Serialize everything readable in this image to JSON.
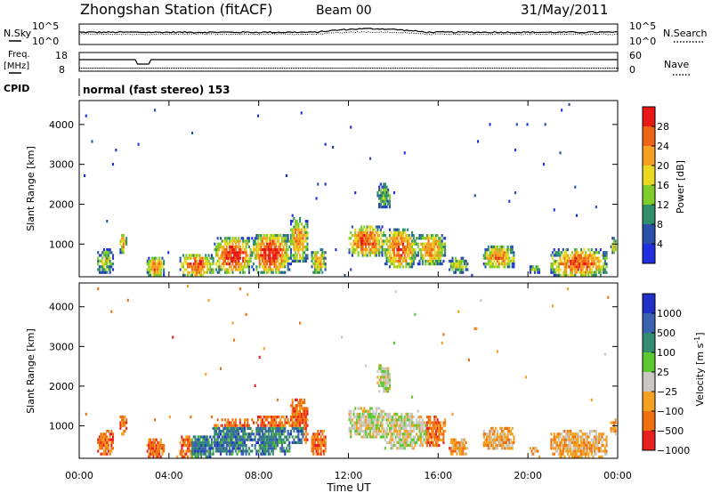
{
  "header": {
    "title": "Zhongshan Station (fitACF)",
    "beam": "Beam 00",
    "date": "31/May/2011"
  },
  "strip_panels": {
    "nsky_label": "N.Sky",
    "nsky_ticks": [
      "10^5",
      "10^0"
    ],
    "nsearch_label": "N.Search",
    "nsearch_ticks": [
      "10^5",
      "10^0"
    ],
    "freq_label_1": "Freq.",
    "freq_label_2": "[MHz]",
    "freq_ticks": [
      "18",
      "8"
    ],
    "nave_label": "Nave",
    "nave_ticks": [
      "60",
      "0"
    ],
    "cpid_label": "CPID",
    "cpid_text": "normal (fast stereo) 153"
  },
  "chart_data": [
    {
      "type": "heatmap",
      "name": "power-panel",
      "ylabel": "Slant Range [km]",
      "yticks": [
        1000,
        2000,
        3000,
        4000
      ],
      "ylim": [
        180,
        4600
      ],
      "xlim_hours": [
        0,
        24
      ],
      "colorbar": {
        "label": "Power [dB]",
        "ticks": [
          "4",
          "8",
          "12",
          "16",
          "20",
          "24",
          "28"
        ],
        "tick_values": [
          4,
          8,
          12,
          16,
          20,
          24,
          28
        ],
        "range": [
          0,
          32
        ],
        "colors": [
          "#1f2fe0",
          "#2b4fa8",
          "#2f8f6a",
          "#7fcc2a",
          "#e8d820",
          "#f4a020",
          "#f06418",
          "#e81818"
        ]
      }
    },
    {
      "type": "heatmap",
      "name": "velocity-panel",
      "ylabel": "Slant Range [km]",
      "yticks": [
        1000,
        2000,
        3000,
        4000
      ],
      "ylim": [
        180,
        4600
      ],
      "xlim_hours": [
        0,
        24
      ],
      "colorbar": {
        "label": "Velocity [m s",
        "label_sup": "-1",
        "label_end": "]",
        "ticks": [
          "1000",
          "500",
          "100",
          "25",
          "−25",
          "−100",
          "−500",
          "−1000"
        ],
        "colors": [
          "#2030c8",
          "#3a62b0",
          "#348c70",
          "#5ec830",
          "#c8c8c0",
          "#f4a020",
          "#f07010",
          "#e82020"
        ]
      }
    }
  ],
  "x_axis": {
    "ticks": [
      "00:00",
      "04:00",
      "08:00",
      "12:00",
      "16:00",
      "20:00",
      "00:00"
    ],
    "label": "Time UT"
  }
}
